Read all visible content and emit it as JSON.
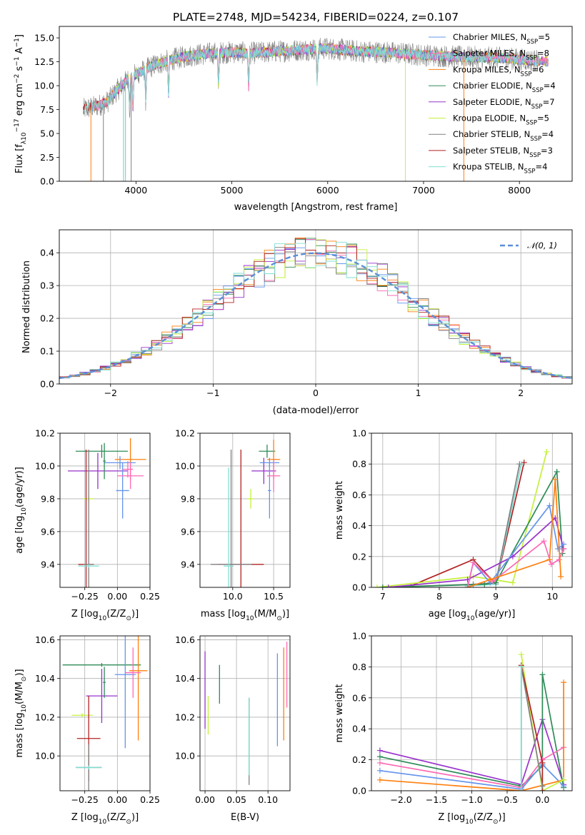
{
  "figure_title": "PLATE=2748, MJD=54234, FIBERID=0224, z=0.107",
  "colors": {
    "chabrier_miles": "#6495ed",
    "salpeter_miles": "#ff69b4",
    "kroupa_miles": "#ff7f0e",
    "chabrier_elodie": "#2e8b57",
    "salpeter_elodie": "#9932cc",
    "kroupa_elodie": "#c5f03d",
    "chabrier_stelib": "#808080",
    "salpeter_stelib": "#b22222",
    "kroupa_stelib": "#7fdfd4",
    "normal_curve": "#5b8fd8"
  },
  "chart_data": [
    {
      "id": "spectrum",
      "type": "line",
      "xlabel": "wavelength [Angstrom, rest frame]",
      "ylabel_parts": [
        "Flux [f",
        "λ",
        "10",
        "−17",
        " erg cm",
        "−2",
        " s",
        "−1",
        " A",
        "−1",
        "]"
      ],
      "xlim": [
        3200,
        8550
      ],
      "ylim": [
        0,
        16.2
      ],
      "xticks": [
        4000,
        5000,
        6000,
        7000,
        8000
      ],
      "yticks": [
        0.0,
        2.5,
        5.0,
        7.5,
        10.0,
        12.5,
        15.0
      ],
      "grid": false,
      "legend_position": "upper right",
      "legend": [
        {
          "base": "Chabrier MILES, N",
          "sub": "SSP",
          "tail": "=5",
          "color_key": "chabrier_miles"
        },
        {
          "base": "Salpeter MILES, N",
          "sub": "SSP",
          "tail": "=8",
          "color_key": "salpeter_miles"
        },
        {
          "base": "Kroupa MILES, N",
          "sub": "SSP",
          "tail": "=6",
          "color_key": "kroupa_miles"
        },
        {
          "base": "Chabrier ELODIE, N",
          "sub": "SSP",
          "tail": "=4",
          "color_key": "chabrier_elodie"
        },
        {
          "base": "Salpeter ELODIE, N",
          "sub": "SSP",
          "tail": "=7",
          "color_key": "salpeter_elodie"
        },
        {
          "base": "Kroupa ELODIE, N",
          "sub": "SSP",
          "tail": "=5",
          "color_key": "kroupa_elodie"
        },
        {
          "base": "Chabrier STELIB, N",
          "sub": "SSP",
          "tail": "=4",
          "color_key": "chabrier_stelib"
        },
        {
          "base": "Salpeter STELIB, N",
          "sub": "SSP",
          "tail": "=3",
          "color_key": "salpeter_stelib"
        },
        {
          "base": "Kroupa STELIB, N",
          "sub": "SSP",
          "tail": "=4",
          "color_key": "kroupa_stelib"
        }
      ],
      "continuum": {
        "x": [
          3450,
          3600,
          3700,
          3800,
          3900,
          4000,
          4200,
          4400,
          4600,
          4800,
          5000,
          5200,
          5500,
          5800,
          6000,
          6300,
          6600,
          7000,
          7400,
          7800,
          8200,
          8300
        ],
        "y": [
          7.5,
          7.9,
          8.3,
          9.5,
          10.5,
          11.2,
          12.2,
          12.8,
          13.2,
          13.4,
          13.5,
          13.4,
          13.6,
          13.8,
          13.9,
          13.6,
          13.5,
          13.2,
          13.0,
          12.9,
          12.6,
          12.5
        ]
      },
      "deep_dips": [
        {
          "series": "chabrier_stelib",
          "x": [
            3660,
            3870,
            3890,
            3950
          ]
        },
        {
          "series": "kroupa_stelib",
          "x": [
            3870,
            3890
          ]
        },
        {
          "series": "kroupa_miles",
          "x": [
            3530
          ]
        },
        {
          "series": "kroupa_miles",
          "x": [
            7420
          ]
        },
        {
          "series": "kroupa_elodie",
          "x": [
            6810
          ]
        }
      ]
    },
    {
      "id": "residuals",
      "type": "histogram",
      "xlabel": "(data-model)/error",
      "ylabel": "Normed distribution",
      "xlim": [
        -2.5,
        2.5
      ],
      "ylim": [
        0,
        0.47
      ],
      "xticks": [
        -2,
        -1,
        0,
        1,
        2
      ],
      "yticks": [
        0.0,
        0.1,
        0.2,
        0.3,
        0.4
      ],
      "grid": true,
      "legend_position": "upper right",
      "reference_label": "𝒩(0, 1)",
      "reference": {
        "mean": 0,
        "sigma": 1
      },
      "bin_width": 0.1,
      "series_keys": [
        "chabrier_miles",
        "salpeter_miles",
        "kroupa_miles",
        "chabrier_elodie",
        "salpeter_elodie",
        "kroupa_elodie",
        "chabrier_stelib",
        "salpeter_stelib",
        "kroupa_stelib"
      ]
    },
    {
      "id": "age_vs_z",
      "type": "errorbar",
      "xlabel_parts": [
        "Z [log",
        "10",
        "(Z/Z",
        "⊙",
        ")]"
      ],
      "ylabel_parts": [
        "age  [log",
        "10",
        "(age/yr)]"
      ],
      "xlim": [
        -0.44,
        0.25
      ],
      "ylim": [
        9.26,
        10.2
      ],
      "xticks": [
        -0.25,
        0.0,
        0.25
      ],
      "xticklabels": [
        "−0.25",
        "0.00",
        "0.25"
      ],
      "yticks": [
        9.4,
        9.6,
        9.8,
        10.0,
        10.2
      ],
      "grid": true,
      "points": [
        {
          "series": "chabrier_elodie",
          "x": -0.12,
          "xerr": 0.2,
          "y": 10.09,
          "yerr": 0.04
        },
        {
          "series": "salpeter_elodie",
          "x": -0.15,
          "xerr": 0.23,
          "y": 9.97,
          "yerr": 0.11
        },
        {
          "series": "kroupa_miles",
          "x": 0.1,
          "xerr": 0.12,
          "y": 10.04,
          "yerr": 0.13
        },
        {
          "series": "chabrier_miles",
          "x": 0.02,
          "xerr": 0.12,
          "y": 10.02,
          "yerr": 0.04
        },
        {
          "series": "chabrier_miles",
          "x": 0.04,
          "xerr": 0.05,
          "y": 9.85,
          "yerr": 0.17
        },
        {
          "series": "salpeter_miles",
          "x": 0.1,
          "xerr": 0.1,
          "y": 9.94,
          "yerr": 0.08
        },
        {
          "series": "salpeter_miles",
          "x": 0.08,
          "xerr": 0.04,
          "y": 9.98,
          "yerr": 0.05
        },
        {
          "series": "kroupa_elodie",
          "x": -0.22,
          "xerr": 0.04,
          "y": 9.8,
          "yerr": 0.02
        },
        {
          "series": "salpeter_stelib",
          "x": -0.24,
          "xerr": 0.06,
          "y": 9.4,
          "yerr": 0.7
        },
        {
          "series": "chabrier_stelib",
          "x": -0.22,
          "xerr": 0.04,
          "y": 9.4,
          "yerr": 0.7
        },
        {
          "series": "kroupa_stelib",
          "x": -0.22,
          "xerr": 0.08,
          "y": 9.39,
          "yerr": 0.01
        },
        {
          "series": "chabrier_elodie",
          "x": -0.1,
          "xerr": 0.01,
          "y": 10.03,
          "yerr": 0.11
        }
      ]
    },
    {
      "id": "age_vs_mass",
      "type": "errorbar",
      "xlabel_parts": [
        "mass [log",
        "10",
        "(M/M",
        "⊙",
        ")]"
      ],
      "ylabel_parts": [],
      "xlim": [
        9.6,
        10.7
      ],
      "ylim": [
        9.26,
        10.2
      ],
      "xticks": [
        10.0,
        10.5
      ],
      "xticklabels": [
        "10.0",
        "10.5"
      ],
      "yticks": [
        9.4,
        9.6,
        9.8,
        10.0,
        10.2
      ],
      "grid": true,
      "points": [
        {
          "series": "chabrier_elodie",
          "x": 10.42,
          "xerr": 0.1,
          "y": 10.09,
          "yerr": 0.04
        },
        {
          "series": "salpeter_elodie",
          "x": 10.38,
          "xerr": 0.15,
          "y": 9.97,
          "yerr": 0.08
        },
        {
          "series": "kroupa_miles",
          "x": 10.5,
          "xerr": 0.08,
          "y": 10.04,
          "yerr": 0.12
        },
        {
          "series": "chabrier_miles",
          "x": 10.45,
          "xerr": 0.12,
          "y": 10.02,
          "yerr": 0.03
        },
        {
          "series": "chabrier_miles",
          "x": 10.45,
          "xerr": 0.02,
          "y": 9.85,
          "yerr": 0.17
        },
        {
          "series": "salpeter_miles",
          "x": 10.5,
          "xerr": 0.08,
          "y": 9.94,
          "yerr": 0.1
        },
        {
          "series": "kroupa_elodie",
          "x": 10.22,
          "xerr": 0.04,
          "y": 9.8,
          "yerr": 0.06
        },
        {
          "series": "salpeter_stelib",
          "x": 10.1,
          "xerr": 0.28,
          "y": 9.4,
          "yerr": 0.7
        },
        {
          "series": "chabrier_stelib",
          "x": 9.98,
          "xerr": 0.25,
          "y": 9.4,
          "yerr": 0.7
        },
        {
          "series": "kroupa_stelib",
          "x": 9.95,
          "xerr": 0.06,
          "y": 9.39,
          "yerr": 0.6
        }
      ]
    },
    {
      "id": "mass_weight_vs_age",
      "type": "line",
      "xlabel_parts": [
        "age  [log",
        "10",
        "(age/yr)]"
      ],
      "ylabel": "mass weight",
      "xlim": [
        6.8,
        10.35
      ],
      "ylim": [
        0,
        1
      ],
      "xticks": [
        7,
        8,
        9,
        10
      ],
      "yticks": [
        0.0,
        0.2,
        0.4,
        0.6,
        0.8,
        1.0
      ],
      "grid": true,
      "series": [
        {
          "series": "salpeter_stelib",
          "x": [
            7.5,
            8.6,
            9.0,
            9.5
          ],
          "y": [
            0.01,
            0.18,
            0.02,
            0.81
          ]
        },
        {
          "series": "kroupa_stelib",
          "x": [
            8.5,
            9.0,
            9.45
          ],
          "y": [
            0.01,
            0.02,
            0.8
          ]
        },
        {
          "series": "chabrier_stelib",
          "x": [
            7.0,
            8.6,
            9.0,
            9.42
          ],
          "y": [
            0.0,
            0.02,
            0.03,
            0.8
          ]
        },
        {
          "series": "kroupa_elodie",
          "x": [
            6.9,
            8.6,
            9.3,
            9.9
          ],
          "y": [
            0.0,
            0.07,
            0.03,
            0.88
          ]
        },
        {
          "series": "chabrier_elodie",
          "x": [
            7.0,
            8.8,
            9.0,
            10.08,
            10.18
          ],
          "y": [
            0.0,
            0.02,
            0.03,
            0.75,
            0.22
          ]
        },
        {
          "series": "salpeter_elodie",
          "x": [
            7.1,
            8.5,
            9.3,
            10.05,
            10.2
          ],
          "y": [
            0.0,
            0.05,
            0.2,
            0.45,
            0.25
          ]
        },
        {
          "series": "chabrier_miles",
          "x": [
            8.5,
            8.6,
            8.9,
            9.95,
            10.1,
            10.2
          ],
          "y": [
            0.0,
            0.16,
            0.03,
            0.53,
            0.25,
            0.28
          ]
        },
        {
          "series": "salpeter_miles",
          "x": [
            8.5,
            8.6,
            8.95,
            9.85,
            9.98,
            10.12,
            10.2
          ],
          "y": [
            0.0,
            0.16,
            0.04,
            0.3,
            0.15,
            0.18,
            0.25
          ]
        },
        {
          "series": "kroupa_miles",
          "x": [
            8.5,
            8.9,
            9.95,
            10.05,
            10.15
          ],
          "y": [
            0.0,
            0.05,
            0.18,
            0.7,
            0.07
          ]
        }
      ]
    },
    {
      "id": "mass_vs_z",
      "type": "errorbar",
      "xlabel_parts": [
        "Z [log",
        "10",
        "(Z/Z",
        "⊙",
        ")]"
      ],
      "ylabel_parts": [
        "mass [log",
        "10",
        "(M/M",
        "⊙",
        ")]"
      ],
      "xlim": [
        -0.44,
        0.25
      ],
      "ylim": [
        9.82,
        10.62
      ],
      "xticks": [
        -0.25,
        0.0,
        0.25
      ],
      "xticklabels": [
        "−0.25",
        "0.00",
        "0.25"
      ],
      "yticks": [
        10.0,
        10.2,
        10.4,
        10.6
      ],
      "grid": true,
      "points": [
        {
          "series": "chabrier_elodie",
          "x": -0.12,
          "xerr": 0.3,
          "y": 10.47,
          "yerr": 0.01
        },
        {
          "series": "salpeter_elodie",
          "x": -0.12,
          "xerr": 0.12,
          "y": 10.31,
          "yerr": 0.14
        },
        {
          "series": "kroupa_miles",
          "x": 0.16,
          "xerr": 0.07,
          "y": 10.44,
          "yerr": 0.36
        },
        {
          "series": "chabrier_miles",
          "x": 0.06,
          "xerr": 0.08,
          "y": 10.42,
          "yerr": 0.38
        },
        {
          "series": "salpeter_miles",
          "x": 0.12,
          "xerr": 0.06,
          "y": 10.43,
          "yerr": 0.13
        },
        {
          "series": "kroupa_elodie",
          "x": -0.27,
          "xerr": 0.08,
          "y": 10.21,
          "yerr": 0.01
        },
        {
          "series": "salpeter_stelib",
          "x": -0.22,
          "xerr": 0.09,
          "y": 10.09,
          "yerr": 0.22
        },
        {
          "series": "chabrier_stelib",
          "x": -0.22,
          "xerr": 0.1,
          "y": 9.94,
          "yerr": 0.12
        },
        {
          "series": "kroupa_stelib",
          "x": -0.22,
          "xerr": 0.1,
          "y": 9.94,
          "yerr": 0.01
        },
        {
          "series": "chabrier_elodie",
          "x": -0.1,
          "xerr": 0.01,
          "y": 10.38,
          "yerr": 0.08
        }
      ]
    },
    {
      "id": "mass_vs_ebv",
      "type": "errorbar",
      "xlabel_parts": [
        "E(B-V)"
      ],
      "ylabel_parts": [],
      "xlim": [
        -0.008,
        0.135
      ],
      "ylim": [
        9.82,
        10.62
      ],
      "xticks": [
        0.0,
        0.05,
        0.1
      ],
      "xticklabels": [
        "0.00",
        "0.05",
        "0.10"
      ],
      "yticks": [
        10.0,
        10.2,
        10.4,
        10.6
      ],
      "grid": true,
      "points": [
        {
          "series": "salpeter_elodie",
          "x": 0.0,
          "xerr": 0.0,
          "y": 10.34,
          "yerr": 0.2
        },
        {
          "series": "kroupa_elodie",
          "x": 0.005,
          "xerr": 0.0,
          "y": 10.21,
          "yerr": 0.1
        },
        {
          "series": "chabrier_elodie",
          "x": 0.023,
          "xerr": 0.0,
          "y": 10.37,
          "yerr": 0.1
        },
        {
          "series": "salpeter_stelib",
          "x": 0.07,
          "xerr": 0.0,
          "y": 10.25,
          "yerr": 0.05
        },
        {
          "series": "chabrier_stelib",
          "x": 0.07,
          "xerr": 0.0,
          "y": 10.05,
          "yerr": 0.2
        },
        {
          "series": "kroupa_stelib",
          "x": 0.07,
          "xerr": 0.0,
          "y": 10.1,
          "yerr": 0.2
        },
        {
          "series": "chabrier_miles",
          "x": 0.115,
          "xerr": 0.0,
          "y": 10.29,
          "yerr": 0.24
        },
        {
          "series": "kroupa_miles",
          "x": 0.125,
          "xerr": 0.0,
          "y": 10.32,
          "yerr": 0.24
        },
        {
          "series": "salpeter_miles",
          "x": 0.13,
          "xerr": 0.0,
          "y": 10.42,
          "yerr": 0.17
        }
      ]
    },
    {
      "id": "mass_weight_vs_z",
      "type": "line",
      "xlabel_parts": [
        "Z [log",
        "10",
        "(Z/Z",
        "⊙",
        ")]"
      ],
      "ylabel": "mass weight",
      "xlim": [
        -2.42,
        0.42
      ],
      "ylim": [
        0,
        1
      ],
      "xticks": [
        -2.0,
        -1.5,
        -1.0,
        -0.5,
        0.0
      ],
      "xticklabels": [
        "−2.0",
        "−1.5",
        "−1.0",
        "−0.5",
        "0.0"
      ],
      "yticks": [
        0.0,
        0.2,
        0.4,
        0.6,
        0.8,
        1.0
      ],
      "grid": true,
      "series": [
        {
          "series": "salpeter_elodie",
          "x": [
            -2.3,
            -0.3,
            0.0,
            0.3
          ],
          "y": [
            0.26,
            0.04,
            0.46,
            0.04
          ]
        },
        {
          "series": "chabrier_elodie",
          "x": [
            -2.3,
            -0.3,
            0.0,
            0.0,
            0.3
          ],
          "y": [
            0.22,
            0.03,
            0.16,
            0.75,
            0.02
          ]
        },
        {
          "series": "salpeter_miles",
          "x": [
            -2.3,
            -0.3,
            0.0,
            0.3
          ],
          "y": [
            0.18,
            0.02,
            0.2,
            0.28
          ]
        },
        {
          "series": "chabrier_miles",
          "x": [
            -2.3,
            -0.3,
            0.0,
            0.3
          ],
          "y": [
            0.13,
            0.01,
            0.17,
            0.03
          ]
        },
        {
          "series": "kroupa_miles",
          "x": [
            -2.3,
            -0.3,
            0.3,
            0.3
          ],
          "y": [
            0.07,
            0.0,
            0.07,
            0.7
          ]
        },
        {
          "series": "kroupa_elodie",
          "x": [
            -0.3,
            0.0,
            0.3
          ],
          "y": [
            0.88,
            0.0,
            0.07
          ]
        },
        {
          "series": "salpeter_stelib",
          "x": [
            -0.3,
            0.0,
            0.0
          ],
          "y": [
            0.81,
            0.18,
            0.0
          ]
        },
        {
          "series": "chabrier_stelib",
          "x": [
            -0.3,
            -0.3,
            0.0
          ],
          "y": [
            0.0,
            0.8,
            0.03
          ]
        },
        {
          "series": "kroupa_stelib",
          "x": [
            -0.3,
            -0.3
          ],
          "y": [
            0.0,
            0.8
          ]
        }
      ]
    }
  ]
}
